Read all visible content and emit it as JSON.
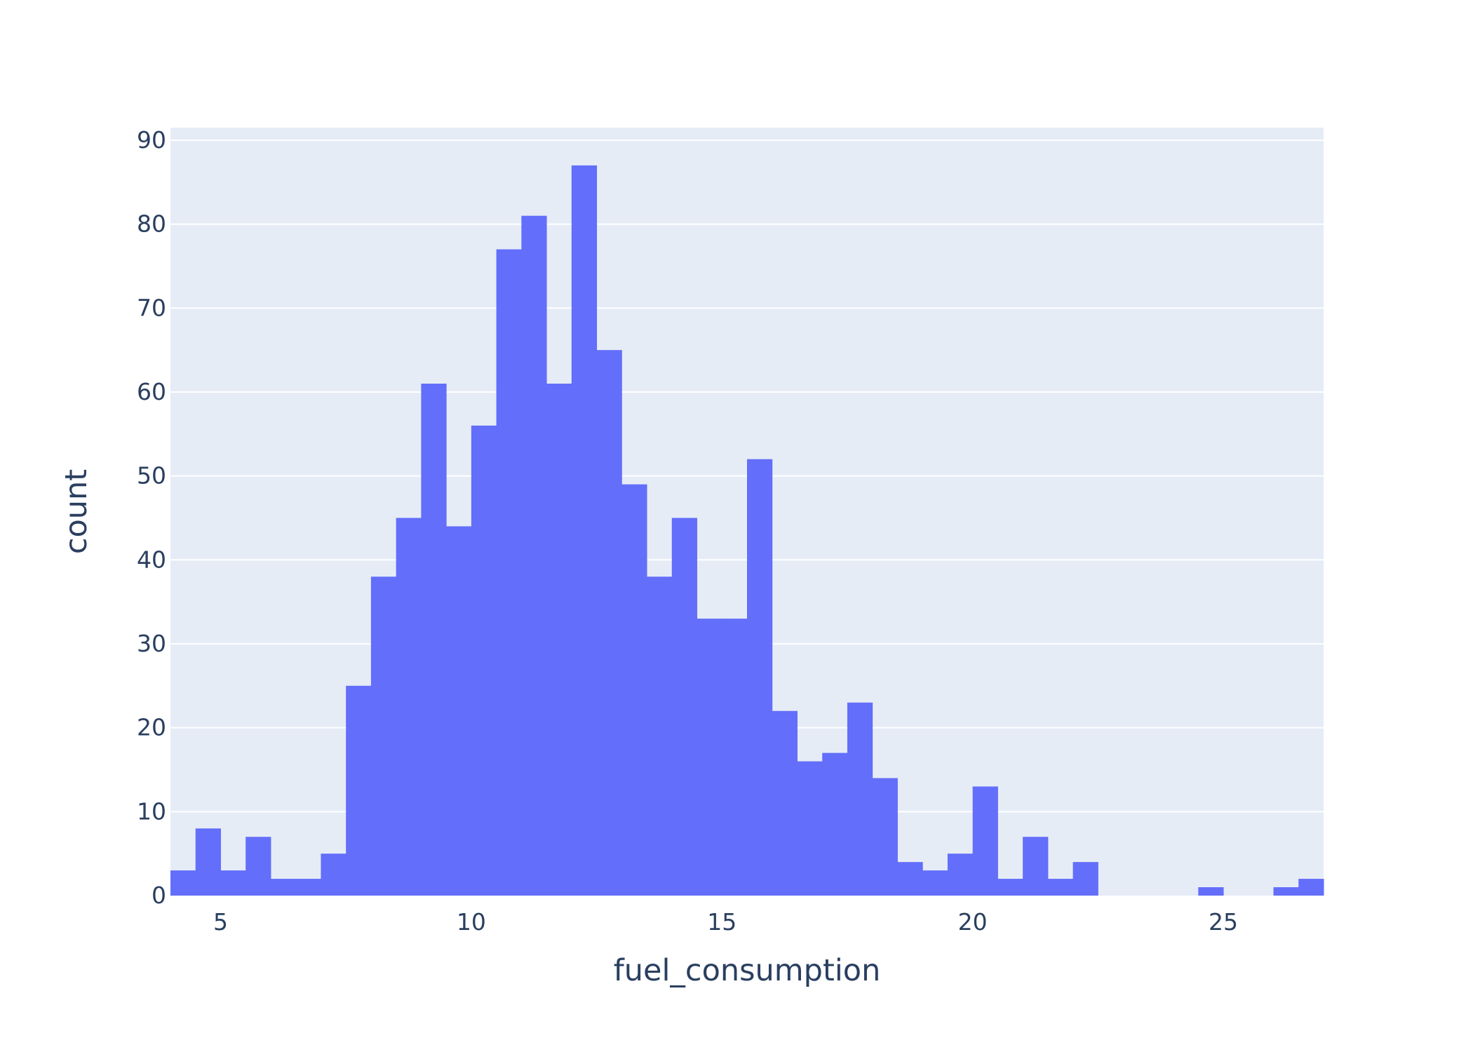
{
  "chart_data": {
    "type": "bar",
    "histogram": true,
    "title": "",
    "xlabel": "fuel_consumption",
    "ylabel": "count",
    "xlim": [
      4,
      27
    ],
    "ylim": [
      0,
      91.5
    ],
    "x_ticks": [
      5,
      10,
      15,
      20,
      25
    ],
    "y_ticks": [
      0,
      10,
      20,
      30,
      40,
      50,
      60,
      70,
      80,
      90
    ],
    "grid": true,
    "bin_width": 0.5,
    "bins_start": [
      4,
      4.5,
      5,
      5.5,
      6,
      6.5,
      7,
      7.5,
      8,
      8.5,
      9,
      9.5,
      10,
      10.5,
      11,
      11.5,
      12,
      12.5,
      13,
      13.5,
      14,
      14.5,
      15,
      15.5,
      16,
      16.5,
      17,
      17.5,
      18,
      18.5,
      19,
      19.5,
      20,
      20.5,
      21,
      21.5,
      22,
      22.5,
      23,
      23.5,
      24,
      24.5,
      25,
      25.5,
      26,
      26.5
    ],
    "values": [
      3,
      8,
      3,
      7,
      2,
      2,
      5,
      25,
      38,
      45,
      61,
      44,
      56,
      77,
      81,
      61,
      87,
      65,
      49,
      38,
      45,
      33,
      33,
      52,
      22,
      16,
      17,
      23,
      14,
      4,
      3,
      5,
      13,
      2,
      7,
      2,
      4,
      0,
      0,
      0,
      0,
      1,
      0,
      0,
      1,
      2
    ],
    "colors": {
      "bar": "#636efa",
      "plot_bg": "#e5ecf6",
      "grid": "#ffffff",
      "text": "#2a3f5f"
    }
  }
}
